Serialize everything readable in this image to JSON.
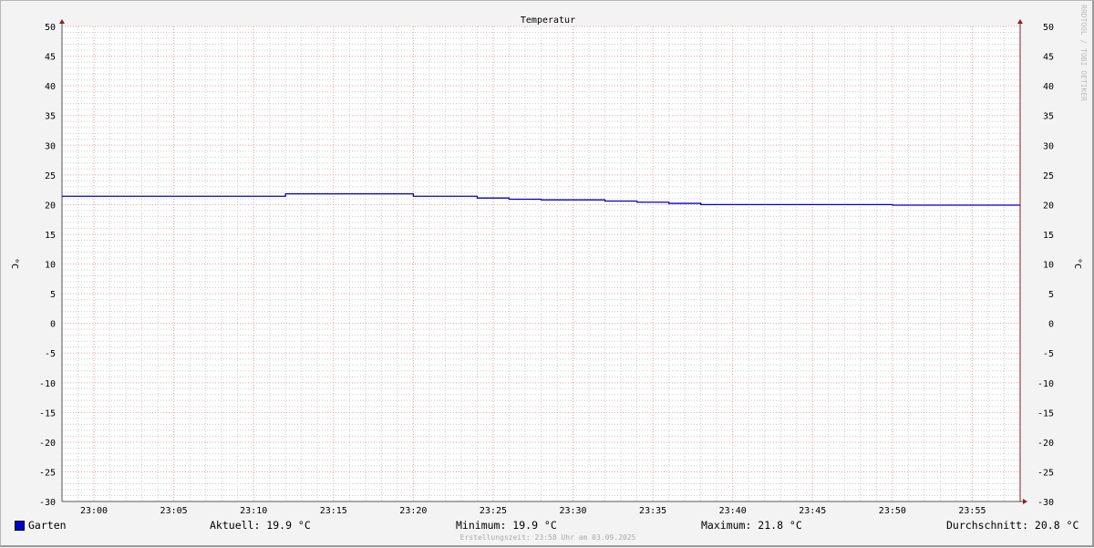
{
  "chart_data": {
    "type": "line",
    "title": "Temperatur",
    "ylabel": "°C",
    "ylabel_right": "°C",
    "ylim": [
      -30,
      50
    ],
    "yticks": [
      50,
      45,
      40,
      35,
      30,
      25,
      20,
      15,
      10,
      5,
      0,
      -5,
      -10,
      -15,
      -20,
      -25,
      -30
    ],
    "xlim": [
      "22:58",
      "23:58"
    ],
    "xticks": [
      "23:00",
      "23:05",
      "23:10",
      "23:15",
      "23:20",
      "23:25",
      "23:30",
      "23:35",
      "23:40",
      "23:45",
      "23:50",
      "23:55"
    ],
    "grid": true,
    "line_shape": "step",
    "series": [
      {
        "name": "Garten",
        "color": "#0000cc",
        "x": [
          "22:58",
          "23:12",
          "23:20",
          "23:24",
          "23:26",
          "23:28",
          "23:32",
          "23:34",
          "23:36",
          "23:38",
          "23:50",
          "23:58"
        ],
        "values": [
          21.4,
          21.8,
          21.4,
          21.1,
          20.9,
          20.8,
          20.6,
          20.4,
          20.2,
          20.0,
          19.9,
          19.9
        ]
      }
    ]
  },
  "legend": {
    "series_name": "Garten",
    "aktuell": "Aktuell: 19.9 °C",
    "minimum": "Minimum: 19.9 °C",
    "maximum": "Maximum: 21.8 °C",
    "durchschnitt": "Durchschnitt: 20.8 °C"
  },
  "credit": "Erstellungszeit: 23:58 Uhr am 03.09.2025",
  "watermark": "RRDTOOL / TOBI OETIKER",
  "colors": {
    "grid_major": "#e8a0a0",
    "grid_minor": "#cccccc",
    "axis": "#8b2020",
    "line": "#0000cc"
  }
}
